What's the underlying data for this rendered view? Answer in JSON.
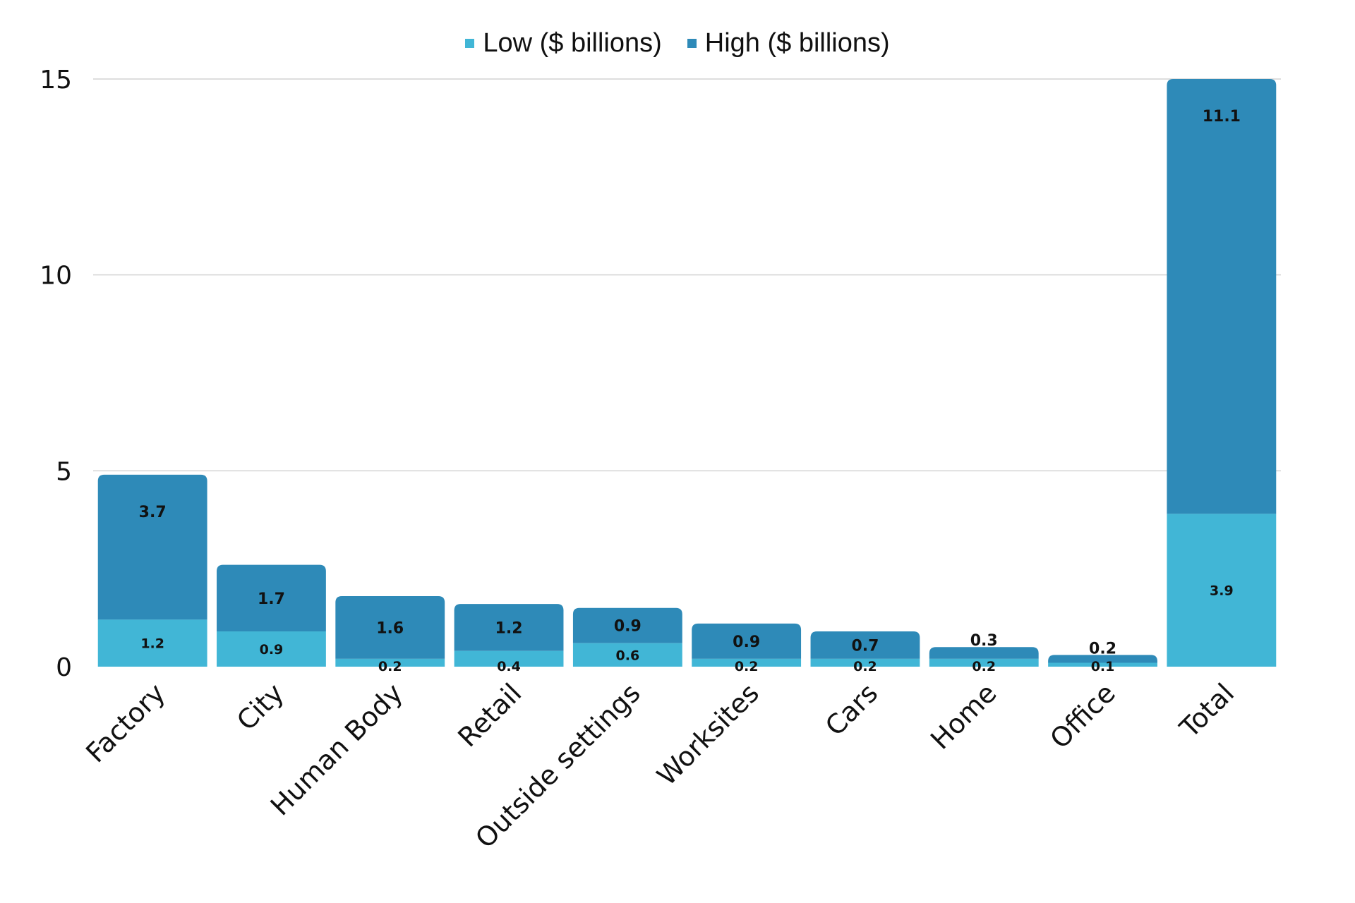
{
  "chart_data": {
    "type": "bar",
    "stacked": true,
    "categories": [
      "Factory",
      "City",
      "Human Body",
      "Retail",
      "Outside settings",
      "Worksites",
      "Cars",
      "Home",
      "Office",
      "Total"
    ],
    "series": [
      {
        "name": "Low ($ billions)",
        "color": "#41b6d6",
        "values": [
          1.2,
          0.9,
          0.2,
          0.4,
          0.6,
          0.2,
          0.2,
          0.2,
          0.1,
          3.9
        ]
      },
      {
        "name": "High ($ billions)",
        "color": "#2e8ab8",
        "values": [
          3.7,
          1.7,
          1.6,
          1.2,
          0.9,
          0.9,
          0.7,
          0.3,
          0.2,
          11.1
        ]
      }
    ],
    "ylim": [
      0,
      15
    ],
    "yticks": [
      0,
      5,
      10,
      15
    ],
    "grid": true,
    "legend_position": "top-center",
    "title": "",
    "xlabel": "",
    "ylabel": ""
  }
}
